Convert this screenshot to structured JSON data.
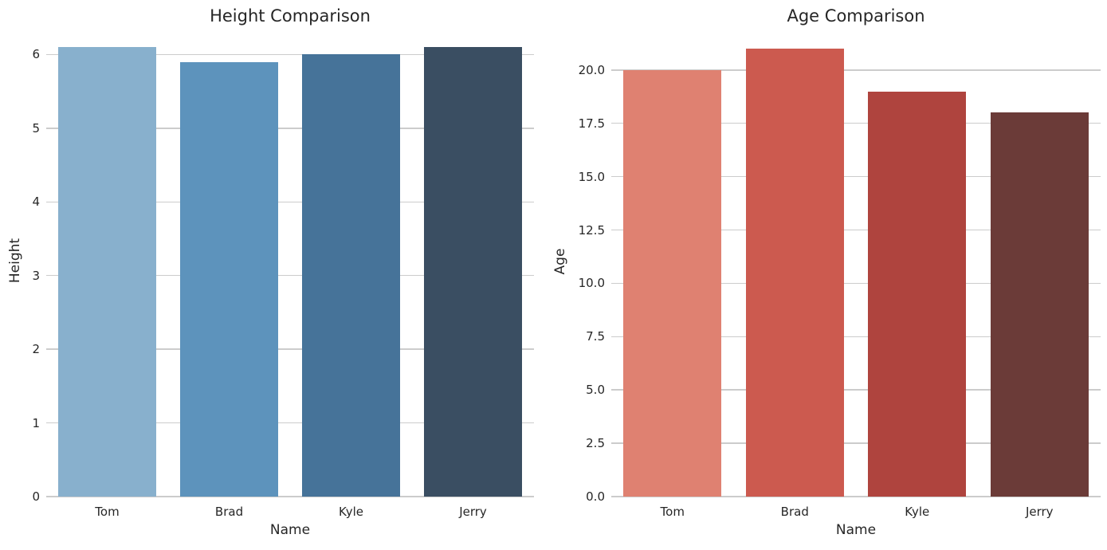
{
  "figure": {
    "background_color": "#ffffff",
    "grid_color": "#cccccc",
    "text_color": "#262626"
  },
  "chart_data": [
    {
      "type": "bar",
      "title": "Height Comparison",
      "xlabel": "Name",
      "ylabel": "Height",
      "categories": [
        "Tom",
        "Brad",
        "Kyle",
        "Jerry"
      ],
      "values": [
        6.1,
        5.9,
        6.0,
        6.1
      ],
      "bar_colors": [
        "#88B0CD",
        "#5D93BC",
        "#467399",
        "#3A4E62"
      ],
      "ylim": [
        0,
        6.405
      ],
      "ytick_values": [
        0,
        1,
        2,
        3,
        4,
        5,
        6
      ],
      "ytick_labels": [
        "0",
        "1",
        "2",
        "3",
        "4",
        "5",
        "6"
      ],
      "grid": "horizontal",
      "legend": "none"
    },
    {
      "type": "bar",
      "title": "Age Comparison",
      "xlabel": "Name",
      "ylabel": "Age",
      "categories": [
        "Tom",
        "Brad",
        "Kyle",
        "Jerry"
      ],
      "values": [
        20,
        21,
        19,
        18
      ],
      "bar_colors": [
        "#DF8171",
        "#CC5A4F",
        "#AF443E",
        "#6B3B38"
      ],
      "ylim": [
        0,
        22.05
      ],
      "ytick_values": [
        0,
        2.5,
        5,
        7.5,
        10,
        12.5,
        15,
        17.5,
        20
      ],
      "ytick_labels": [
        "0.0",
        "2.5",
        "5.0",
        "7.5",
        "10.0",
        "12.5",
        "15.0",
        "17.5",
        "20.0"
      ],
      "grid": "horizontal",
      "legend": "none"
    }
  ]
}
